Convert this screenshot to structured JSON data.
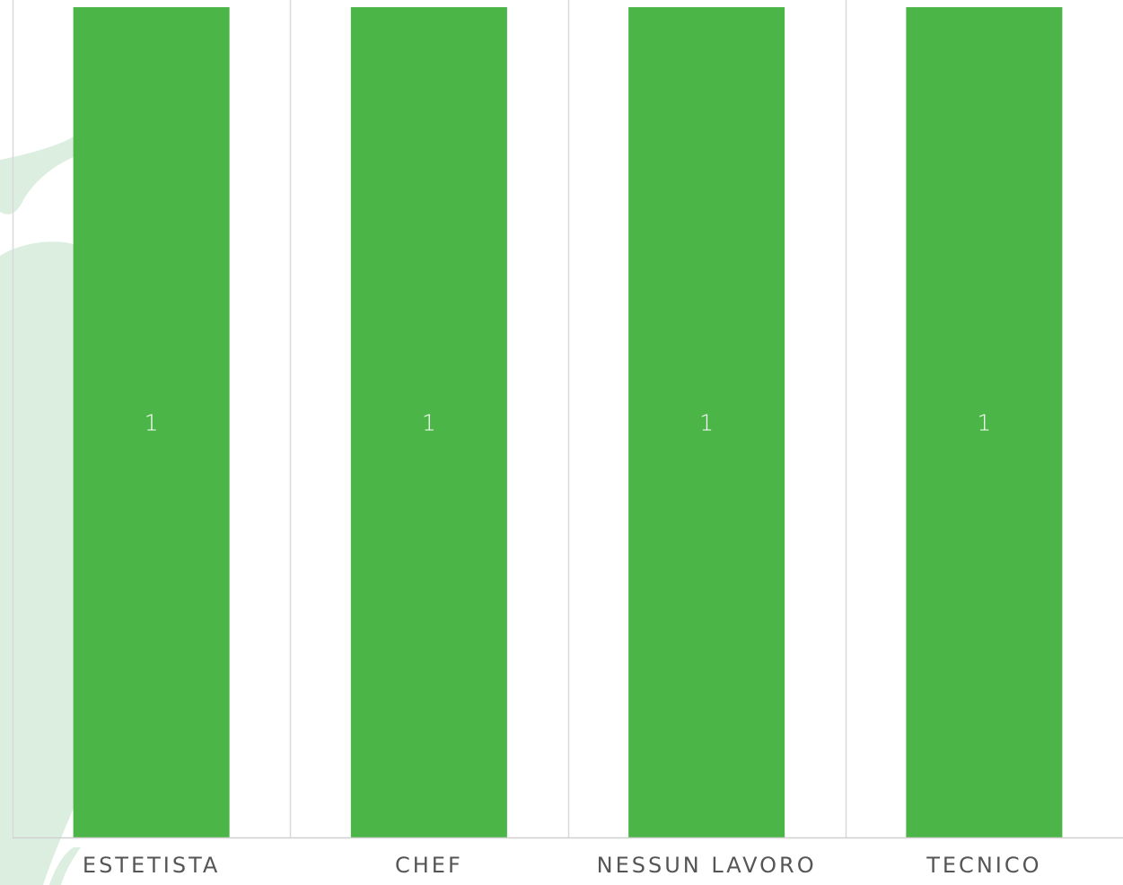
{
  "chart_data": {
    "type": "bar",
    "categories": [
      "ESTETISTA",
      "CHEF",
      "NESSUN LAVORO",
      "TECNICO"
    ],
    "values": [
      1,
      1,
      1,
      1
    ],
    "data_labels": [
      "1",
      "1",
      "1",
      "1"
    ],
    "ylim": [
      0,
      1
    ],
    "grid": true,
    "legend": "none",
    "colors": {
      "bar": "#4bb548",
      "grid": "#d9d9d9",
      "axis": "#d0d0d0",
      "decor": "#dceee0"
    }
  }
}
